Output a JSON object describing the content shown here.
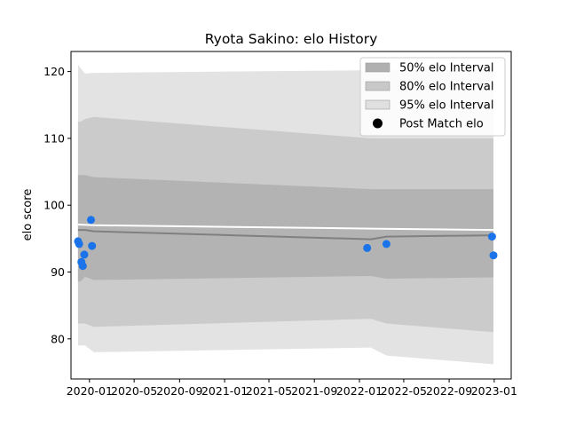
{
  "chart_data": {
    "type": "line",
    "title": "Ryota Sakino: elo History",
    "xlabel": "",
    "ylabel": "elo score",
    "ylim": [
      74,
      123
    ],
    "xlim": [
      "2019-11-12",
      "2023-02-16"
    ],
    "x_ticks": [
      {
        "label": "2020-01",
        "date": "2020-01-01"
      },
      {
        "label": "2020-05",
        "date": "2020-05-01"
      },
      {
        "label": "2020-09",
        "date": "2020-09-01"
      },
      {
        "label": "2021-01",
        "date": "2021-01-01"
      },
      {
        "label": "2021-05",
        "date": "2021-05-01"
      },
      {
        "label": "2021-09",
        "date": "2021-09-01"
      },
      {
        "label": "2022-01",
        "date": "2022-01-01"
      },
      {
        "label": "2022-05",
        "date": "2022-05-01"
      },
      {
        "label": "2022-09",
        "date": "2022-09-01"
      },
      {
        "label": "2023-01",
        "date": "2023-01-01"
      }
    ],
    "y_ticks": [
      80,
      90,
      100,
      110,
      120
    ],
    "grid": false,
    "legend_position": "top-right",
    "legend": [
      {
        "label": "50% elo Interval",
        "kind": "patch",
        "color": "#b0b0b0"
      },
      {
        "label": "80% elo Interval",
        "kind": "patch",
        "color": "#c8c8c8"
      },
      {
        "label": "95% elo Interval",
        "kind": "patch",
        "color": "#e0e0e0"
      },
      {
        "label": "Post Match elo",
        "kind": "marker",
        "color": "#000000"
      }
    ],
    "colors": {
      "band50": "#b3b3b3",
      "band80": "#cbcbcb",
      "band95": "#e3e3e3",
      "mean_line": "#808080",
      "upper_line": "#ffffff",
      "points": "#1a73e8"
    },
    "bands": {
      "x": [
        "2019-12-01",
        "2019-12-08",
        "2019-12-20",
        "2020-01-13",
        "2022-02-01",
        "2022-03-15",
        "2022-12-30"
      ],
      "q025": [
        79.0,
        79.0,
        79.0,
        78.0,
        78.7,
        77.5,
        76.2
      ],
      "q10": [
        82.3,
        82.3,
        82.3,
        81.8,
        83.0,
        82.3,
        81.0
      ],
      "q25": [
        88.6,
        88.6,
        89.3,
        88.8,
        89.4,
        89.0,
        89.2
      ],
      "q75": [
        104.5,
        104.5,
        104.5,
        104.2,
        102.4,
        102.4,
        102.4
      ],
      "q90": [
        112.5,
        112.5,
        112.9,
        113.2,
        110.0,
        110.0,
        110.0
      ],
      "q975": [
        121.0,
        120.5,
        119.7,
        119.8,
        120.2,
        120.2,
        120.3
      ]
    },
    "mean_line": {
      "x": [
        "2019-12-01",
        "2019-12-20",
        "2020-01-13",
        "2022-02-01",
        "2022-03-15",
        "2022-12-30"
      ],
      "y": [
        96.3,
        96.3,
        96.1,
        94.9,
        95.3,
        95.5
      ]
    },
    "upper_line": {
      "x": [
        "2019-12-01",
        "2020-01-13",
        "2022-02-01",
        "2022-12-30"
      ],
      "y": [
        97.1,
        97.0,
        96.5,
        96.3
      ]
    },
    "points": [
      {
        "x": "2019-12-01",
        "y": 94.6
      },
      {
        "x": "2019-12-04",
        "y": 94.2
      },
      {
        "x": "2019-12-10",
        "y": 91.5
      },
      {
        "x": "2019-12-14",
        "y": 90.9
      },
      {
        "x": "2019-12-18",
        "y": 92.6
      },
      {
        "x": "2020-01-05",
        "y": 97.8
      },
      {
        "x": "2020-01-08",
        "y": 93.9
      },
      {
        "x": "2022-01-22",
        "y": 93.6
      },
      {
        "x": "2022-03-15",
        "y": 94.2
      },
      {
        "x": "2022-12-26",
        "y": 95.3
      },
      {
        "x": "2022-12-30",
        "y": 92.5
      }
    ]
  }
}
